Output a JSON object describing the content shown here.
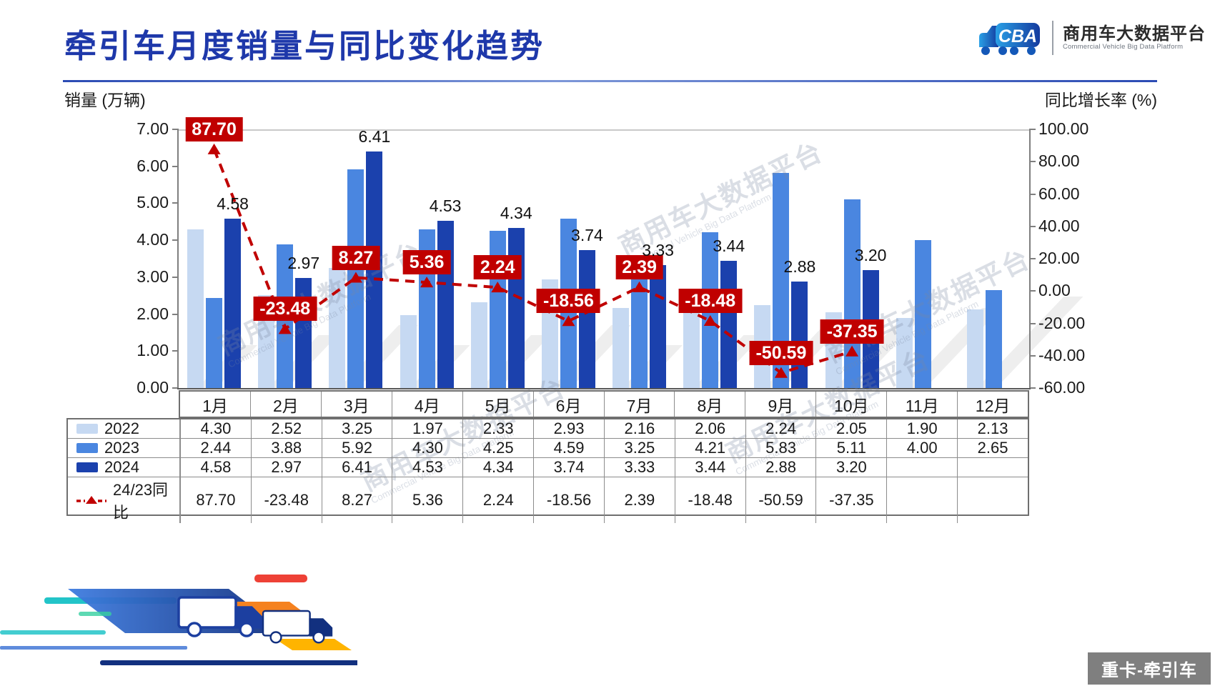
{
  "page": {
    "title": "牵引车月度销量与同比变化趋势",
    "badge": "重卡-牵引车",
    "axes": {
      "left_caption": "销量 (万辆)",
      "right_caption": "同比增长率 (%)"
    }
  },
  "logo": {
    "cn": "商用车大数据平台",
    "en": "Commercial Vehicle Big Data Platform"
  },
  "watermark": {
    "cn": "商用车大数据平台",
    "en": "Commercial Vehicle Big Data Platform"
  },
  "colors": {
    "title_blue": "#1e38aa",
    "bar_2022": "#c6d9f2",
    "bar_2023": "#4a86e0",
    "bar_2024": "#1b41ad",
    "line_red": "#c00000",
    "badge_gray": "#7f7f7f"
  },
  "chart_data": {
    "type": "bar",
    "subtype": "grouped-bar-with-line",
    "categories": [
      "1月",
      "2月",
      "3月",
      "4月",
      "5月",
      "6月",
      "7月",
      "8月",
      "9月",
      "10月",
      "11月",
      "12月"
    ],
    "series": [
      {
        "name": "2022",
        "type": "bar",
        "color": "#c6d9f2",
        "values": [
          4.3,
          2.52,
          3.25,
          1.97,
          2.33,
          2.93,
          2.16,
          2.06,
          2.24,
          2.05,
          1.9,
          2.13
        ]
      },
      {
        "name": "2023",
        "type": "bar",
        "color": "#4a86e0",
        "values": [
          2.44,
          3.88,
          5.92,
          4.3,
          4.25,
          4.59,
          3.25,
          4.21,
          5.83,
          5.11,
          4.0,
          2.65
        ]
      },
      {
        "name": "2024",
        "type": "bar",
        "color": "#1b41ad",
        "data_labels": true,
        "values": [
          4.58,
          2.97,
          6.41,
          4.53,
          4.34,
          3.74,
          3.33,
          3.44,
          2.88,
          3.2,
          null,
          null
        ]
      },
      {
        "name": "24/23同比",
        "type": "line",
        "color": "#c00000",
        "style": "dashed-triangle-markers",
        "data_labels": true,
        "values": [
          87.7,
          -23.48,
          8.27,
          5.36,
          2.24,
          -18.56,
          2.39,
          -18.48,
          -50.59,
          -37.35,
          null,
          null
        ]
      }
    ],
    "left_axis": {
      "label": "销量 (万辆)",
      "min": 0,
      "max": 7,
      "step": 1,
      "tick_format": "0.00"
    },
    "right_axis": {
      "label": "同比增长率 (%)",
      "min": -60,
      "max": 100,
      "step": 20,
      "tick_format": "0.00"
    },
    "grid": "top-border-only",
    "legend_position": "table-left-column",
    "value_format": "0.00"
  }
}
